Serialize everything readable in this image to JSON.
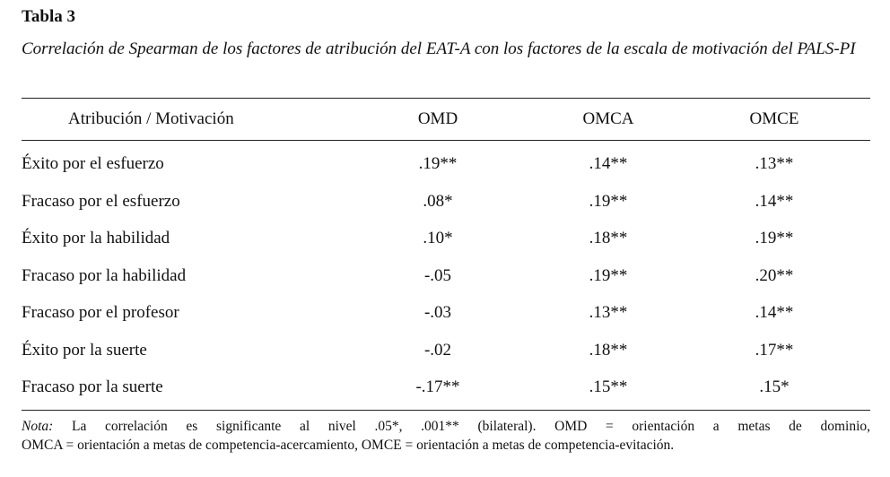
{
  "table": {
    "label": "Tabla 3",
    "caption": "Correlación de Spearman de los factores de atribución del EAT-A con los factores de la escala de motivación del PALS-PI",
    "headers": [
      "Atribución / Motivación",
      "OMD",
      "OMCA",
      "OMCE"
    ],
    "rows": [
      {
        "label": "Éxito por el esfuerzo",
        "omd": ".19**",
        "omca": ".14**",
        "omce": ".13**"
      },
      {
        "label": "Fracaso por el esfuerzo",
        "omd": ".08*",
        "omca": ".19**",
        "omce": ".14**"
      },
      {
        "label": "Éxito por la habilidad",
        "omd": ".10*",
        "omca": ".18**",
        "omce": ".19**"
      },
      {
        "label": "Fracaso por la habilidad",
        "omd": "-.05",
        "omca": ".19**",
        "omce": ".20**"
      },
      {
        "label": "Fracaso por el profesor",
        "omd": "-.03",
        "omca": ".13**",
        "omce": ".14**"
      },
      {
        "label": "Éxito por la suerte",
        "omd": "-.02",
        "omca": ".18**",
        "omce": ".17**"
      },
      {
        "label": "Fracaso por la suerte",
        "omd": "-.17**",
        "omca": ".15**",
        "omce": ".15*"
      }
    ],
    "note": {
      "label": "Nota:",
      "line1": "La correlación es significante al nivel .05*, .001** (bilateral). OMD = orientación a metas de dominio,",
      "line2": "OMCA = orientación a metas de competencia-acercamiento, OMCE = orientación a metas de competencia-evitación."
    }
  }
}
